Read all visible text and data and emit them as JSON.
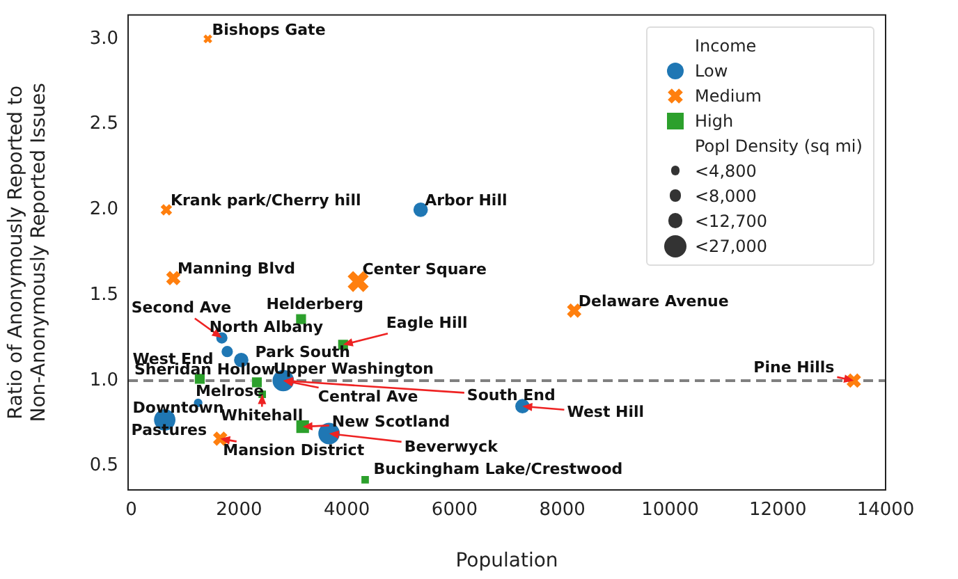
{
  "chart_data": {
    "type": "bubble",
    "xlabel": "Population",
    "ylabel": "Ratio of Anonymously Reported to Non-Anonymously Reported Issues",
    "legend_title": "Income",
    "legend": "top right",
    "grid": false,
    "xlim": [
      -60,
      14000
    ],
    "xticks": [
      0,
      2000,
      4000,
      6000,
      8000,
      10000,
      12000,
      14000
    ],
    "ylim": [
      0.36,
      3.14
    ],
    "yticks": [
      0.5,
      {
        "value": 1,
        "label": "1.0"
      },
      1.5,
      {
        "value": 2,
        "label": "2.0"
      },
      2.5,
      {
        "value": 3,
        "label": "3.0"
      }
    ],
    "size_legend": [
      {
        "value": 4800,
        "label": "<4,800"
      },
      {
        "value": 8000,
        "label": "<8,000"
      },
      {
        "value": 12700,
        "label": "<12,700"
      },
      {
        "value": 27000,
        "label": "<27,000"
      }
    ],
    "ref_lines": [
      {
        "axis": "y",
        "value": 1.0,
        "color": "#808080",
        "line_style": "dashed"
      }
    ],
    "series": [
      {
        "name": "Low",
        "color": "#1f77b4",
        "marker": "circle",
        "x": [
          5370,
          7260,
          1680,
          1780,
          2040,
          2820,
          1240,
          620,
          3670
        ],
        "values": [
          2.0,
          0.85,
          1.25,
          1.17,
          1.12,
          1.0,
          0.87,
          0.77,
          0.69
        ],
        "sizes": [
          12700,
          12700,
          8000,
          8000,
          12700,
          27000,
          4800,
          27000,
          27000
        ]
      },
      {
        "name": "Medium",
        "color": "#ff7f0e",
        "marker": "cross",
        "x": [
          1420,
          650,
          780,
          4210,
          8220,
          13410,
          1650
        ],
        "values": [
          3.0,
          2.0,
          1.6,
          1.58,
          1.41,
          1.0,
          0.66
        ],
        "sizes": [
          4800,
          8000,
          12700,
          27000,
          12700,
          12700,
          12700
        ]
      },
      {
        "name": "High",
        "color": "#2ca02c",
        "marker": "square",
        "x": [
          3150,
          3930,
          1270,
          2330,
          2430,
          3180,
          4340
        ],
        "values": [
          1.36,
          1.21,
          1.01,
          0.99,
          0.92,
          0.73,
          0.42
        ],
        "sizes": [
          8000,
          8000,
          8000,
          8000,
          4800,
          12700,
          4800
        ]
      }
    ],
    "annotations": [
      {
        "text": "Bishops Gate",
        "x": 1420,
        "y": 3.0
      },
      {
        "text": "Krank park/Cherry hill",
        "x": 650,
        "y": 2.0
      },
      {
        "text": "Arbor Hill",
        "x": 5370,
        "y": 2.0
      },
      {
        "text": "Manning Blvd",
        "x": 780,
        "y": 1.6
      },
      {
        "text": "Center Square",
        "x": 4210,
        "y": 1.58
      },
      {
        "text": "Delaware Avenue",
        "x": 8220,
        "y": 1.41
      },
      {
        "text": "Pine Hills",
        "x": 13410,
        "y": 1.0
      },
      {
        "text": "West Hill",
        "x": 7260,
        "y": 0.85
      },
      {
        "text": "Second Ave",
        "x": 1680,
        "y": 1.25
      },
      {
        "text": "North Albany",
        "x": 1680,
        "y": 1.25
      },
      {
        "text": "West End",
        "x": 1780,
        "y": 1.17
      },
      {
        "text": "Park South",
        "x": 2040,
        "y": 1.12
      },
      {
        "text": "Helderberg",
        "x": 3150,
        "y": 1.36
      },
      {
        "text": "Eagle Hill",
        "x": 3930,
        "y": 1.21
      },
      {
        "text": "Sheridan Hollow",
        "x": 1270,
        "y": 1.01
      },
      {
        "text": "Melrose",
        "x": 2330,
        "y": 0.99
      },
      {
        "text": "Whitehall",
        "x": 2430,
        "y": 0.92
      },
      {
        "text": "Upper Washington",
        "x": 2820,
        "y": 1.0
      },
      {
        "text": "Central Ave",
        "x": 2820,
        "y": 1.0
      },
      {
        "text": "South End",
        "x": 2820,
        "y": 1.0
      },
      {
        "text": "Downtown",
        "x": 1240,
        "y": 0.87
      },
      {
        "text": "Pastures",
        "x": 620,
        "y": 0.77
      },
      {
        "text": "Mansion District",
        "x": 1650,
        "y": 0.66
      },
      {
        "text": "New Scotland",
        "x": 3180,
        "y": 0.73
      },
      {
        "text": "Beverwyck",
        "x": 3670,
        "y": 0.69
      },
      {
        "text": "Buckingham Lake/Crestwood",
        "x": 4340,
        "y": 0.42
      },
      "Popl Density (sq mi)"
    ]
  }
}
